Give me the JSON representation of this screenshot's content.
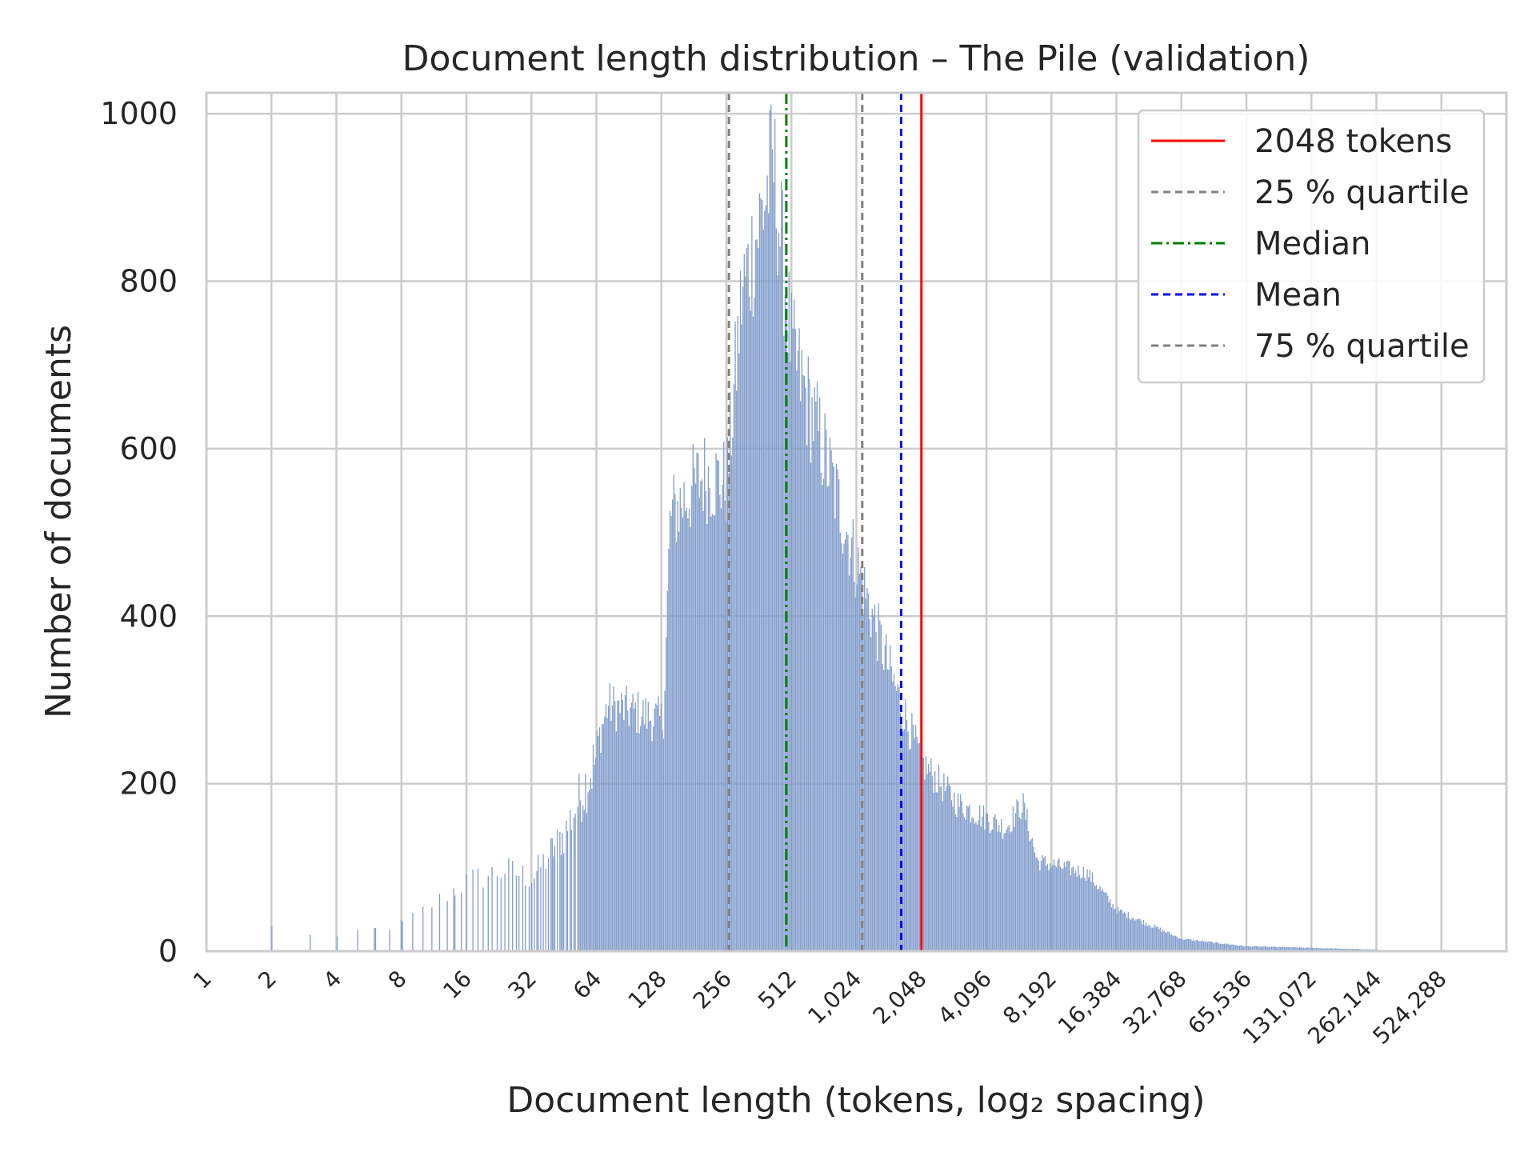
{
  "chart_data": {
    "type": "histogram",
    "title": "Document length distribution – The Pile (validation)",
    "xlabel": "Document length (tokens, log₂ spacing)",
    "ylabel": "Number of documents",
    "x_scale": "log2",
    "xlim": [
      1,
      1048576
    ],
    "ylim": [
      0,
      1025
    ],
    "grid": true,
    "yticks": [
      0,
      200,
      400,
      600,
      800,
      1000
    ],
    "ytick_labels": [
      "0",
      "200",
      "400",
      "600",
      "800",
      "1000"
    ],
    "xticks": [
      1,
      2,
      4,
      8,
      16,
      32,
      64,
      128,
      256,
      512,
      1024,
      2048,
      4096,
      8192,
      16384,
      32768,
      65536,
      131072,
      262144,
      524288
    ],
    "xtick_labels": [
      "1",
      "2",
      "4",
      "8",
      "16",
      "32",
      "64",
      "128",
      "256",
      "512",
      "1,024",
      "2,048",
      "4,096",
      "8,192",
      "16,384",
      "32,768",
      "65,536",
      "131,072",
      "262,144",
      "524,288"
    ],
    "bar_color": "#819ccb",
    "histogram_profile": [
      {
        "x": 2,
        "count": 30
      },
      {
        "x": 4,
        "count": 18
      },
      {
        "x": 8,
        "count": 35
      },
      {
        "x": 16,
        "count": 90
      },
      {
        "x": 24,
        "count": 105
      },
      {
        "x": 32,
        "count": 95
      },
      {
        "x": 45,
        "count": 150
      },
      {
        "x": 64,
        "count": 250
      },
      {
        "x": 72,
        "count": 300
      },
      {
        "x": 100,
        "count": 290
      },
      {
        "x": 130,
        "count": 280
      },
      {
        "x": 140,
        "count": 530
      },
      {
        "x": 200,
        "count": 580
      },
      {
        "x": 256,
        "count": 570
      },
      {
        "x": 300,
        "count": 800
      },
      {
        "x": 350,
        "count": 870
      },
      {
        "x": 420,
        "count": 960
      },
      {
        "x": 512,
        "count": 730
      },
      {
        "x": 700,
        "count": 620
      },
      {
        "x": 1024,
        "count": 470
      },
      {
        "x": 1500,
        "count": 330
      },
      {
        "x": 2048,
        "count": 230
      },
      {
        "x": 3000,
        "count": 180
      },
      {
        "x": 5000,
        "count": 150
      },
      {
        "x": 6000,
        "count": 180
      },
      {
        "x": 7000,
        "count": 110
      },
      {
        "x": 12000,
        "count": 95
      },
      {
        "x": 16384,
        "count": 50
      },
      {
        "x": 32768,
        "count": 15
      },
      {
        "x": 65536,
        "count": 6
      },
      {
        "x": 131072,
        "count": 4
      },
      {
        "x": 262144,
        "count": 2
      }
    ],
    "vertical_lines": [
      {
        "label": "2048 tokens",
        "x": 2048,
        "color": "#ff0000",
        "style": "solid"
      },
      {
        "label": "25 % quartile",
        "x": 263,
        "color": "#808080",
        "style": "dashed"
      },
      {
        "label": "Median",
        "x": 485,
        "color": "#008000",
        "style": "dashdot"
      },
      {
        "label": "Mean",
        "x": 1650,
        "color": "#0000ff",
        "style": "dashed"
      },
      {
        "label": "75 % quartile",
        "x": 1090,
        "color": "#808080",
        "style": "dashed"
      }
    ],
    "legend": {
      "position": "top-right",
      "entries": [
        {
          "label": "2048 tokens",
          "color": "#ff0000",
          "style": "solid"
        },
        {
          "label": "25 % quartile",
          "color": "#808080",
          "style": "dashed"
        },
        {
          "label": "Median",
          "color": "#008000",
          "style": "dashdot"
        },
        {
          "label": "Mean",
          "color": "#0000ff",
          "style": "dashed"
        },
        {
          "label": "75 % quartile",
          "color": "#808080",
          "style": "dashed"
        }
      ]
    }
  }
}
